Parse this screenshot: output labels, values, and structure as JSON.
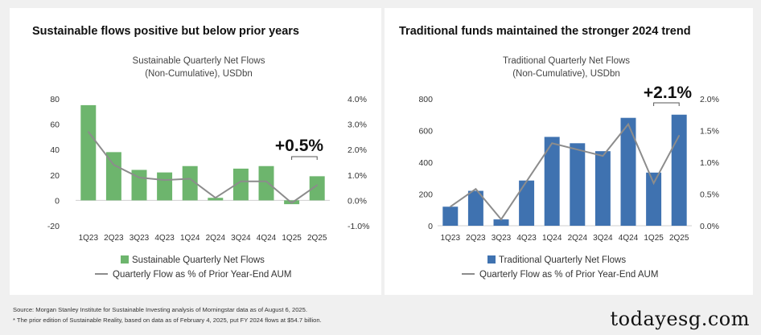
{
  "panels": [
    {
      "heading": "Sustainable flows positive but below prior years"
    },
    {
      "heading": "Traditional funds maintained the stronger 2024 trend"
    }
  ],
  "source": {
    "line1": "Source: Morgan Stanley Institute for Sustainable Investing analysis of Morningstar data as of August 6, 2025.",
    "line2": "* The prior edition of Sustainable Reality, based on data as of February 4, 2025, put FY 2024 flows at $54.7 billion."
  },
  "brand": "todayesg.com",
  "colors": {
    "sustainable": "#6db56d",
    "traditional": "#3f72b0",
    "line": "#8c8c8c"
  },
  "chart_data": [
    {
      "type": "bar",
      "title": "Sustainable Quarterly Net Flows",
      "subtitle": "(Non-Cumulative), USDbn",
      "categories": [
        "1Q23",
        "2Q23",
        "3Q23",
        "4Q23",
        "1Q24",
        "2Q24",
        "3Q24",
        "4Q24",
        "1Q25",
        "2Q25"
      ],
      "series": [
        {
          "name": "Sustainable Quarterly Net Flows",
          "axis": "left",
          "kind": "bar",
          "values": [
            75,
            38,
            24,
            22,
            27,
            2,
            25,
            27,
            -3,
            19
          ]
        },
        {
          "name": "Quarterly Flow as % of Prior Year-End AUM",
          "axis": "right",
          "kind": "line",
          "values": [
            2.7,
            1.4,
            0.9,
            0.8,
            0.85,
            0.1,
            0.75,
            0.75,
            -0.1,
            0.6
          ]
        }
      ],
      "yticks": [
        "80",
        "60",
        "40",
        "20",
        "0",
        "-20"
      ],
      "ylim": [
        -20,
        80
      ],
      "y2ticks": [
        "4.0%",
        "3.0%",
        "2.0%",
        "1.0%",
        "0.0%",
        "-1.0%"
      ],
      "y2lim": [
        -1,
        4
      ],
      "annotation": "+0.5%",
      "legend": "bottom"
    },
    {
      "type": "bar",
      "title": "Traditional Quarterly Net Flows",
      "subtitle": "(Non-Cumulative), USDbn",
      "categories": [
        "1Q23",
        "2Q23",
        "3Q23",
        "4Q23",
        "1Q24",
        "2Q24",
        "3Q24",
        "4Q24",
        "1Q25",
        "2Q25"
      ],
      "series": [
        {
          "name": "Traditional Quarterly Net Flows",
          "axis": "left",
          "kind": "bar",
          "values": [
            120,
            220,
            40,
            285,
            560,
            520,
            470,
            680,
            335,
            700
          ]
        },
        {
          "name": "Quarterly Flow as % of Prior Year-End AUM",
          "axis": "right",
          "kind": "line",
          "values": [
            0.3,
            0.58,
            0.1,
            0.7,
            1.3,
            1.2,
            1.1,
            1.6,
            0.67,
            1.42
          ]
        }
      ],
      "yticks": [
        "800",
        "600",
        "400",
        "200",
        "0"
      ],
      "ylim": [
        0,
        800
      ],
      "y2ticks": [
        "2.0%",
        "1.5%",
        "1.0%",
        "0.5%",
        "0.0%"
      ],
      "y2lim": [
        0,
        2
      ],
      "annotation": "+2.1%",
      "legend": "bottom"
    }
  ]
}
